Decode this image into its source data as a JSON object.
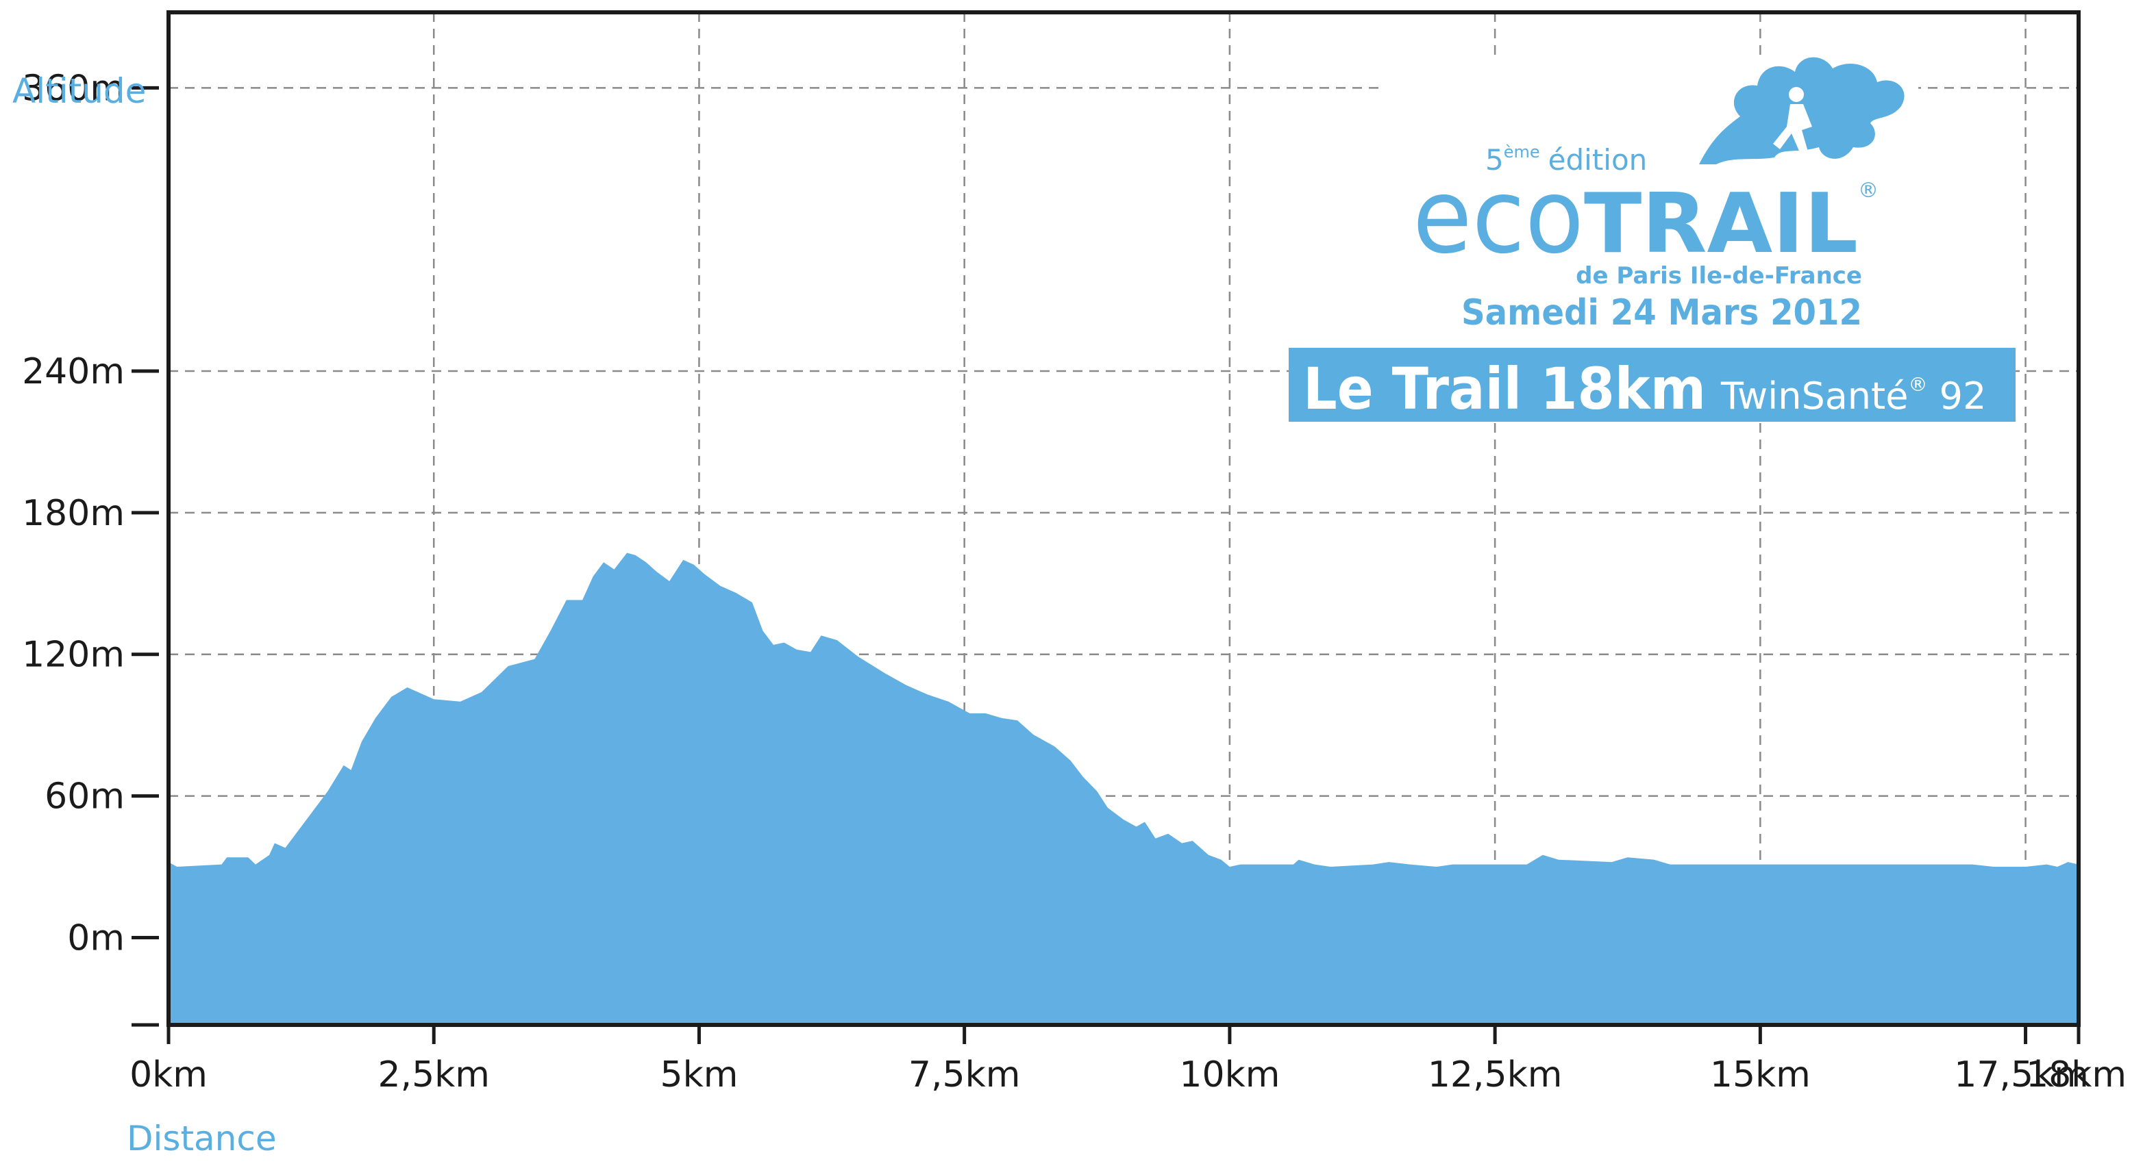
{
  "chart_data": {
    "type": "area",
    "xlabel": "Distance",
    "ylabel": "Altitude",
    "x_ticks": [
      {
        "value": 0,
        "label": "0km"
      },
      {
        "value": 2.5,
        "label": "2,5km"
      },
      {
        "value": 5,
        "label": "5km"
      },
      {
        "value": 7.5,
        "label": "7,5km"
      },
      {
        "value": 10,
        "label": "10km"
      },
      {
        "value": 12.5,
        "label": "12,5km"
      },
      {
        "value": 15,
        "label": "15km"
      },
      {
        "value": 17.5,
        "label": "17,5km"
      },
      {
        "value": 18,
        "label": "18km"
      }
    ],
    "y_ticks": [
      {
        "value": 0,
        "label": "0m"
      },
      {
        "value": 60,
        "label": "60m"
      },
      {
        "value": 120,
        "label": "120m"
      },
      {
        "value": 180,
        "label": "180m"
      },
      {
        "value": 240,
        "label": "240m"
      },
      {
        "value": 360,
        "label": "360m"
      }
    ],
    "xlim": [
      0,
      18
    ],
    "ylim": [
      -37,
      392
    ],
    "grid": true,
    "fill_color": "#62b0e3",
    "series": [
      {
        "x": [
          0,
          0.08,
          0.5,
          0.55,
          0.75,
          0.82,
          0.95,
          1.0,
          1.1,
          1.3,
          1.5,
          1.65,
          1.72,
          1.82,
          1.95,
          2.1,
          2.25,
          2.5,
          2.75,
          2.95,
          3.2,
          3.45,
          3.6,
          3.75,
          3.9,
          4.0,
          4.1,
          4.2,
          4.32,
          4.4,
          4.5,
          4.6,
          4.72,
          4.85,
          4.95,
          5.05,
          5.2,
          5.35,
          5.5,
          5.6,
          5.7,
          5.8,
          5.92,
          6.05,
          6.15,
          6.3,
          6.5,
          6.75,
          6.95,
          7.15,
          7.35,
          7.55,
          7.7,
          7.85,
          8.0,
          8.15,
          8.35,
          8.5,
          8.62,
          8.75,
          8.85,
          9.0,
          9.12,
          9.2,
          9.3,
          9.42,
          9.55,
          9.65,
          9.8,
          9.92,
          10.0,
          10.1,
          10.6,
          10.65,
          10.8,
          10.95,
          11.35,
          11.5,
          11.7,
          11.95,
          12.1,
          12.8,
          12.95,
          13.1,
          13.6,
          13.75,
          14.0,
          14.15,
          16.0,
          17.0,
          17.2,
          17.5,
          17.7,
          17.8,
          17.9,
          18.0
        ],
        "y": [
          32,
          30,
          31,
          34,
          34,
          31,
          35,
          40,
          38,
          50,
          62,
          73,
          71,
          83,
          93,
          102,
          106,
          101,
          100,
          104,
          115,
          118,
          130,
          143,
          143,
          153,
          159,
          156,
          163,
          162,
          159,
          155,
          151,
          160,
          158,
          154,
          149,
          146,
          142,
          130,
          124,
          125,
          122,
          121,
          128,
          126,
          119,
          112,
          107,
          103,
          100,
          95,
          95,
          93,
          92,
          86,
          81,
          75,
          68,
          62,
          55,
          50,
          47,
          49,
          42,
          44,
          40,
          41,
          35,
          33,
          30,
          31,
          31,
          33,
          31,
          30,
          31,
          32,
          31,
          30,
          31,
          31,
          35,
          33,
          32,
          34,
          33,
          31,
          31,
          31,
          30,
          30,
          31,
          30,
          32,
          31
        ]
      }
    ]
  },
  "logo": {
    "edition_number": "5",
    "edition_suffix": "ème",
    "edition_word": "édition",
    "eco": "eco",
    "trail": "TRAIL",
    "registered": "®",
    "subtitle": "de Paris Ile-de-France",
    "date": "Samedi 24 Mars 2012"
  },
  "banner": {
    "main": "Le Trail 18km",
    "sub": "TwinSanté",
    "sub_mark": "®",
    "sub_end": " 92"
  }
}
